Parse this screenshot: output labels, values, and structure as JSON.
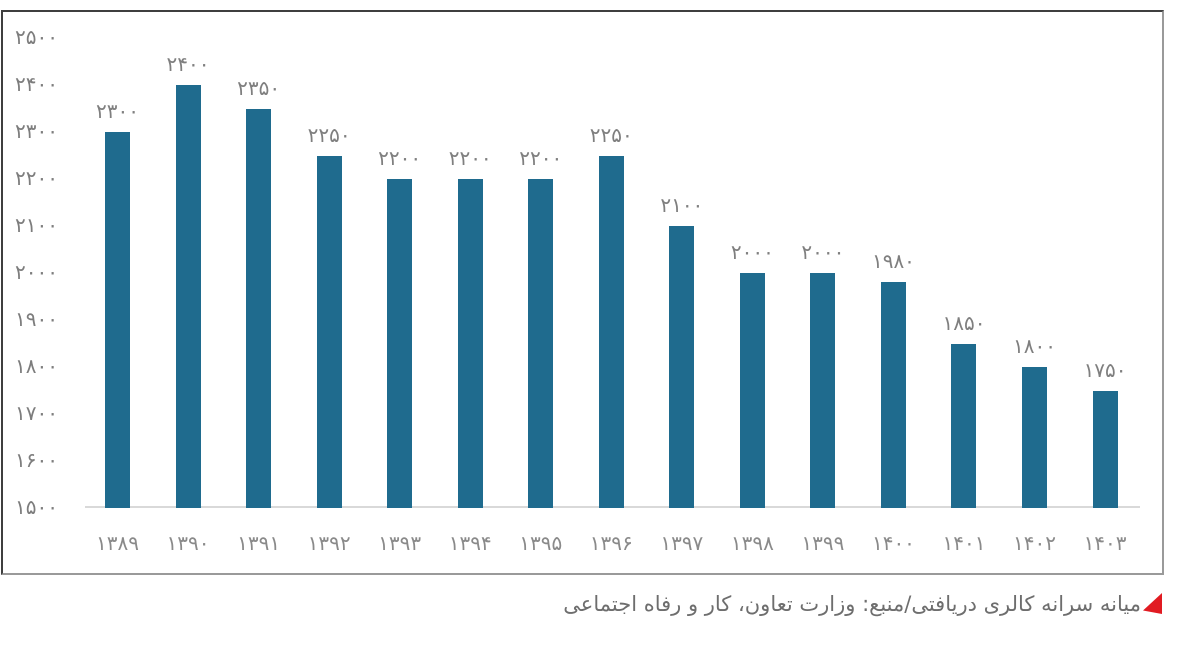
{
  "chart_data": {
    "type": "bar",
    "title": "",
    "xlabel": "",
    "ylabel": "",
    "categories": [
      "1389",
      "1390",
      "1391",
      "1392",
      "1393",
      "1394",
      "1395",
      "1396",
      "1397",
      "1398",
      "1399",
      "1400",
      "1401",
      "1402",
      "1403"
    ],
    "categories_display": [
      "۱۳۸۹",
      "۱۳۹۰",
      "۱۳۹۱",
      "۱۳۹۲",
      "۱۳۹۳",
      "۱۳۹۴",
      "۱۳۹۵",
      "۱۳۹۶",
      "۱۳۹۷",
      "۱۳۹۸",
      "۱۳۹۹",
      "۱۴۰۰",
      "۱۴۰۱",
      "۱۴۰۲",
      "۱۴۰۳"
    ],
    "values": [
      2300,
      2400,
      2350,
      2250,
      2200,
      2200,
      2200,
      2250,
      2100,
      2000,
      2000,
      1980,
      1850,
      1800,
      1750
    ],
    "value_labels_display": [
      "۲۳۰۰",
      "۲۴۰۰",
      "۲۳۵۰",
      "۲۲۵۰",
      "۲۲۰۰",
      "۲۲۰۰",
      "۲۲۰۰",
      "۲۲۵۰",
      "۲۱۰۰",
      "۲۰۰۰",
      "۲۰۰۰",
      "۱۹۸۰",
      "۱۸۵۰",
      "۱۸۰۰",
      "۱۷۵۰"
    ],
    "ylim": [
      1500,
      2500
    ],
    "y_ticks": [
      1500,
      1600,
      1700,
      1800,
      1900,
      2000,
      2100,
      2200,
      2300,
      2400,
      2500
    ],
    "y_tick_labels_display": [
      "۱۵۰۰",
      "۱۶۰۰",
      "۱۷۰۰",
      "۱۸۰۰",
      "۱۹۰۰",
      "۲۰۰۰",
      "۲۱۰۰",
      "۲۲۰۰",
      "۲۳۰۰",
      "۲۴۰۰",
      "۲۵۰۰"
    ],
    "grid": false,
    "legend": false,
    "bar_color": "#1f6b8e",
    "label_color": "#7f7f7f",
    "tick_label_color": "#7d7d7d",
    "axis_line_color": "#d9d9d9"
  },
  "caption": {
    "text": "میانه سرانه کالری دریافتی/منبع: وزارت تعاون، کار و رفاه اجتماعی",
    "marker_color": "#e11b22"
  }
}
